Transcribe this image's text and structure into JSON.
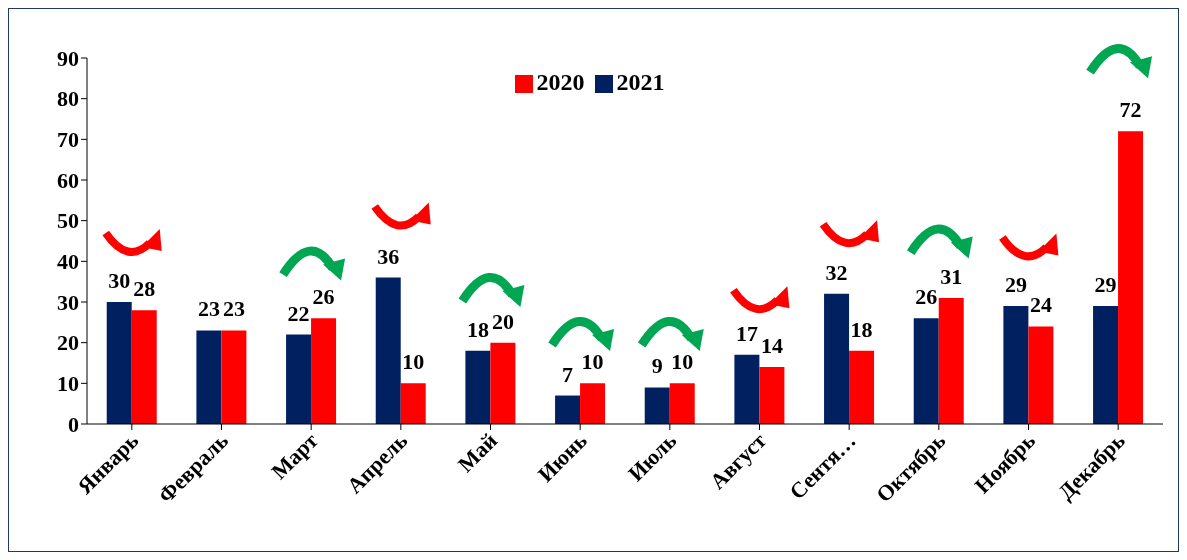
{
  "chart_data": {
    "type": "bar",
    "categories": [
      "Январь",
      "Февраль",
      "Март",
      "Апрель",
      "Май",
      "Июнь",
      "Июль",
      "Август",
      "Сентя…",
      "Октябрь",
      "Ноябрь",
      "Декабрь"
    ],
    "series": [
      {
        "name": "2021",
        "color": "#002060",
        "values": [
          30,
          23,
          22,
          36,
          18,
          7,
          9,
          17,
          32,
          26,
          29,
          29
        ]
      },
      {
        "name": "2020",
        "color": "#ff0000",
        "values": [
          28,
          23,
          26,
          10,
          20,
          10,
          10,
          14,
          18,
          31,
          24,
          72
        ]
      }
    ],
    "ylim": [
      0,
      90
    ],
    "yticks": [
      0,
      10,
      20,
      30,
      40,
      50,
      60,
      70,
      80,
      90
    ],
    "grid": false,
    "legend": "top",
    "data_labels": true
  }
}
